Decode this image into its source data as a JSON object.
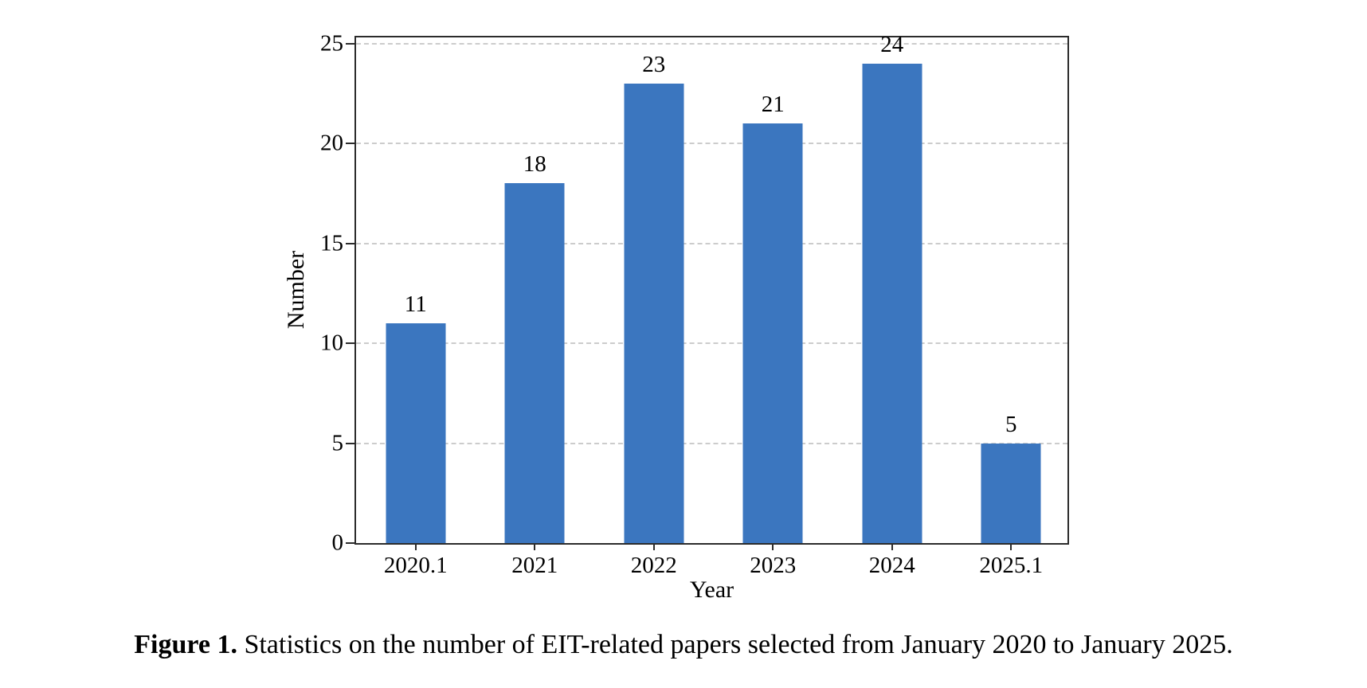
{
  "figure": {
    "caption_label": "Figure 1.",
    "caption_text": "Statistics on the number of EIT-related papers selected from January 2020 to January 2025."
  },
  "chart_data": {
    "type": "bar",
    "title": "",
    "categories": [
      "2020.1",
      "2021",
      "2022",
      "2023",
      "2024",
      "2025.1"
    ],
    "values": [
      11,
      18,
      23,
      21,
      24,
      5
    ],
    "xlabel": "Year",
    "ylabel": "Number",
    "ylim": [
      0,
      25
    ],
    "yticks": [
      0,
      5,
      10,
      15,
      20,
      25
    ],
    "grid": "horizontal-dashed",
    "legend": "none",
    "bar_color": "#3B76BF",
    "grid_color": "#cccccc",
    "axis_color": "#2b2b2b"
  }
}
